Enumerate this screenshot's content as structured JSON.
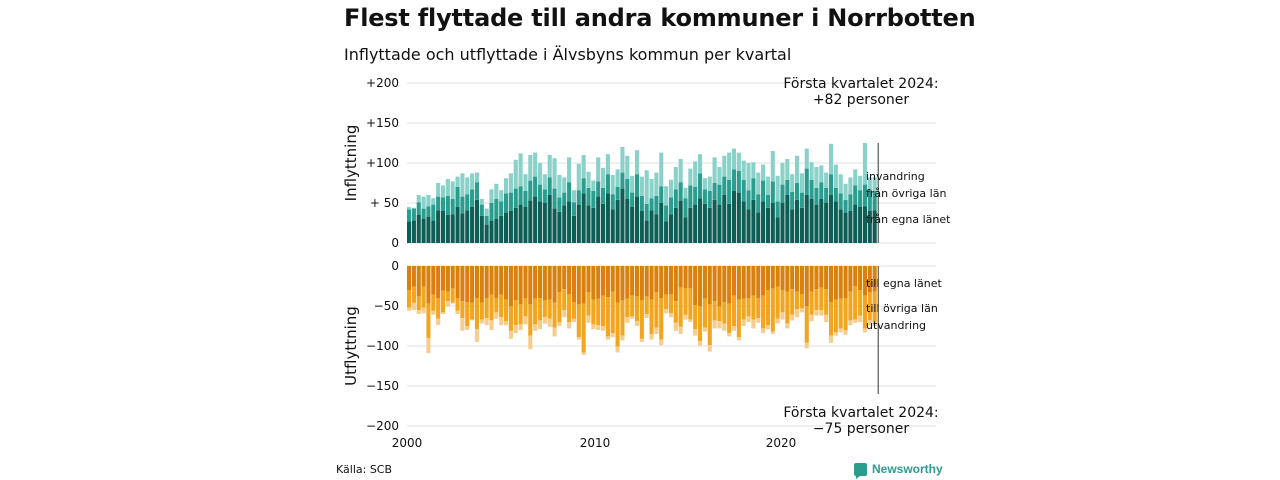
{
  "header": {
    "title": "Flest flyttade till andra kommuner i Norrbotten",
    "subtitle": "Inflyttade och utflyttade i Älvsbyns kommun per kvartal"
  },
  "footer": {
    "source": "Källa: SCB",
    "brand": "Newsworthy"
  },
  "colors": {
    "in_egna": "#0e5e56",
    "in_ovriga": "#2a9d8f",
    "in_invandring": "#8ad2c9",
    "ut_egna": "#d9800e",
    "ut_ovriga": "#f2a51f",
    "ut_utvandring": "#f6cd8e",
    "grid": "#e2e2e2"
  },
  "chart_data": {
    "type": "bar",
    "stacked": true,
    "x_start": "2000 Q1",
    "x_end": "2024 Q1",
    "xticks": [
      "2000",
      "2010",
      "2020"
    ],
    "years": [
      2000,
      2010,
      2020
    ],
    "grid": true,
    "panels": [
      {
        "id": "in",
        "ylabel": "Inflyttning",
        "ylim": [
          0,
          200
        ],
        "yticks": [
          {
            "v": 0,
            "label": "0"
          },
          {
            "v": 50,
            "label": "+ 50"
          },
          {
            "v": 100,
            "label": "+100"
          },
          {
            "v": 150,
            "label": "+150"
          },
          {
            "v": 200,
            "label": "+200"
          }
        ],
        "annotation": [
          "Första kvartalet 2024:",
          "+82 personer"
        ],
        "series": [
          {
            "name": "från egna länet",
            "values": [
              27,
              28,
              35,
              30,
              33,
              28,
              41,
              40,
              35,
              36,
              45,
              37,
              41,
              45,
              54,
              34,
              23,
              28,
              30,
              34,
              38,
              40,
              44,
              48,
              45,
              53,
              58,
              52,
              50,
              60,
              43,
              39,
              47,
              52,
              34,
              48,
              62,
              47,
              44,
              58,
              49,
              62,
              42,
              54,
              68,
              55,
              45,
              58,
              40,
              28,
              41,
              36,
              50,
              27,
              36,
              44,
              53,
              32,
              44,
              48,
              56,
              49,
              44,
              54,
              48,
              60,
              49,
              65,
              63,
              52,
              42,
              54,
              38,
              52,
              44,
              50,
              32,
              50,
              60,
              42,
              54,
              44,
              60,
              55,
              48,
              55,
              50,
              60,
              52,
              42,
              38,
              40,
              48,
              45,
              46,
              40,
              41
            ]
          },
          {
            "name": "från övriga län",
            "values": [
              15,
              15,
              16,
              13,
              13,
              20,
              17,
              17,
              24,
              19,
              25,
              21,
              20,
              22,
              22,
              14,
              11,
              22,
              25,
              18,
              24,
              23,
              24,
              23,
              20,
              25,
              25,
              21,
              17,
              22,
              25,
              18,
              16,
              24,
              17,
              18,
              19,
              22,
              21,
              19,
              20,
              24,
              19,
              16,
              20,
              25,
              18,
              28,
              19,
              21,
              15,
              23,
              21,
              20,
              21,
              23,
              23,
              24,
              28,
              22,
              31,
              18,
              21,
              21,
              25,
              23,
              30,
              27,
              27,
              27,
              24,
              27,
              23,
              26,
              16,
              27,
              20,
              23,
              19,
              22,
              21,
              19,
              33,
              24,
              21,
              21,
              19,
              26,
              17,
              20,
              16,
              21,
              24,
              21,
              27,
              27,
              23
            ]
          },
          {
            "name": "invandring",
            "values": [
              3,
              1,
              9,
              15,
              14,
              8,
              17,
              15,
              21,
              22,
              13,
              29,
              21,
              20,
              12,
              7,
              9,
              17,
              19,
              14,
              19,
              24,
              36,
              41,
              21,
              32,
              30,
              27,
              19,
              28,
              38,
              28,
              19,
              31,
              15,
              33,
              29,
              20,
              13,
              30,
              25,
              25,
              24,
              22,
              32,
              29,
              21,
              30,
              24,
              42,
              24,
              29,
              42,
              24,
              22,
              28,
              29,
              13,
              21,
              32,
              24,
              14,
              18,
              32,
              22,
              26,
              34,
              26,
              23,
              24,
              34,
              20,
              27,
              20,
              23,
              38,
              32,
              27,
              26,
              22,
              34,
              24,
              25,
              22,
              26,
              21,
              19,
              38,
              29,
              24,
              20,
              21,
              20,
              18,
              52,
              15,
              18
            ]
          }
        ],
        "series_labels": [
          "invandring",
          "från övriga län",
          "från egna länet"
        ]
      },
      {
        "id": "out",
        "ylabel": "Utflyttning",
        "ylim": [
          -200,
          0
        ],
        "yticks": [
          {
            "v": 0,
            "label": "0"
          },
          {
            "v": -50,
            "label": "−50"
          },
          {
            "v": -100,
            "label": "−100"
          },
          {
            "v": -150,
            "label": "−150"
          },
          {
            "v": -200,
            "label": "−200"
          }
        ],
        "annotation": [
          "Första kvartalet 2024:",
          "−75 personer"
        ],
        "series": [
          {
            "name": "till egna länet",
            "values": [
              -30,
              -26,
              -38,
              -26,
              -47,
              -36,
              -40,
              -31,
              -32,
              -28,
              -40,
              -44,
              -45,
              -46,
              -40,
              -46,
              -40,
              -36,
              -40,
              -36,
              -42,
              -50,
              -43,
              -48,
              -40,
              -48,
              -41,
              -40,
              -43,
              -42,
              -46,
              -33,
              -29,
              -35,
              -45,
              -48,
              -47,
              -33,
              -42,
              -41,
              -37,
              -39,
              -32,
              -46,
              -43,
              -41,
              -37,
              -38,
              -43,
              -38,
              -42,
              -33,
              -40,
              -36,
              -35,
              -44,
              -27,
              -28,
              -28,
              -49,
              -50,
              -41,
              -48,
              -44,
              -51,
              -45,
              -47,
              -37,
              -42,
              -41,
              -40,
              -37,
              -40,
              -37,
              -30,
              -28,
              -26,
              -30,
              -32,
              -29,
              -32,
              -35,
              -50,
              -32,
              -29,
              -27,
              -29,
              -45,
              -42,
              -41,
              -40,
              -32,
              -25,
              -30,
              -37,
              -33,
              -32
            ]
          },
          {
            "name": "till övriga län",
            "values": [
              -22,
              -20,
              -17,
              -26,
              -43,
              -20,
              -26,
              -27,
              -12,
              -18,
              -16,
              -21,
              -30,
              -21,
              -39,
              -21,
              -25,
              -32,
              -18,
              -28,
              -27,
              -31,
              -31,
              -25,
              -23,
              -39,
              -32,
              -28,
              -21,
              -24,
              -31,
              -37,
              -26,
              -35,
              -21,
              -41,
              -61,
              -29,
              -31,
              -33,
              -38,
              -49,
              -52,
              -55,
              -44,
              -23,
              -26,
              -31,
              -48,
              -22,
              -43,
              -44,
              -52,
              -18,
              -24,
              -27,
              -49,
              -33,
              -39,
              -30,
              -44,
              -36,
              -51,
              -24,
              -18,
              -27,
              -37,
              -38,
              -47,
              -26,
              -23,
              -30,
              -25,
              -41,
              -44,
              -54,
              -40,
              -28,
              -40,
              -32,
              -22,
              -18,
              -46,
              -29,
              -26,
              -28,
              -32,
              -42,
              -41,
              -37,
              -40,
              -36,
              -42,
              -32,
              -41,
              -35,
              -38
            ]
          },
          {
            "name": "utvandring",
            "values": [
              -4,
              -9,
              -5,
              -7,
              -19,
              -5,
              -8,
              -2,
              -7,
              -1,
              -4,
              -16,
              -5,
              -1,
              -16,
              -5,
              -9,
              -12,
              -8,
              -10,
              -5,
              -10,
              -10,
              -7,
              -10,
              -17,
              -8,
              -11,
              -8,
              -10,
              -11,
              -5,
              -9,
              -8,
              -4,
              -3,
              -3,
              -9,
              -6,
              -6,
              -6,
              -4,
              -5,
              -7,
              -6,
              -7,
              -3,
              -6,
              -4,
              -5,
              -7,
              -8,
              -7,
              -5,
              -5,
              -10,
              -9,
              -6,
              -3,
              -8,
              -6,
              -5,
              -8,
              -10,
              -9,
              -9,
              -4,
              -6,
              -4,
              -8,
              -7,
              -11,
              -6,
              -6,
              -5,
              -3,
              -6,
              -9,
              -6,
              -7,
              -10,
              -5,
              -7,
              -8,
              -7,
              -7,
              -9,
              -9,
              -4,
              -5,
              -6,
              -6,
              -4,
              -8,
              -5,
              -6,
              -5
            ]
          }
        ],
        "series_labels": [
          "till egna länet",
          "till övriga län",
          "utvandring"
        ]
      }
    ]
  }
}
